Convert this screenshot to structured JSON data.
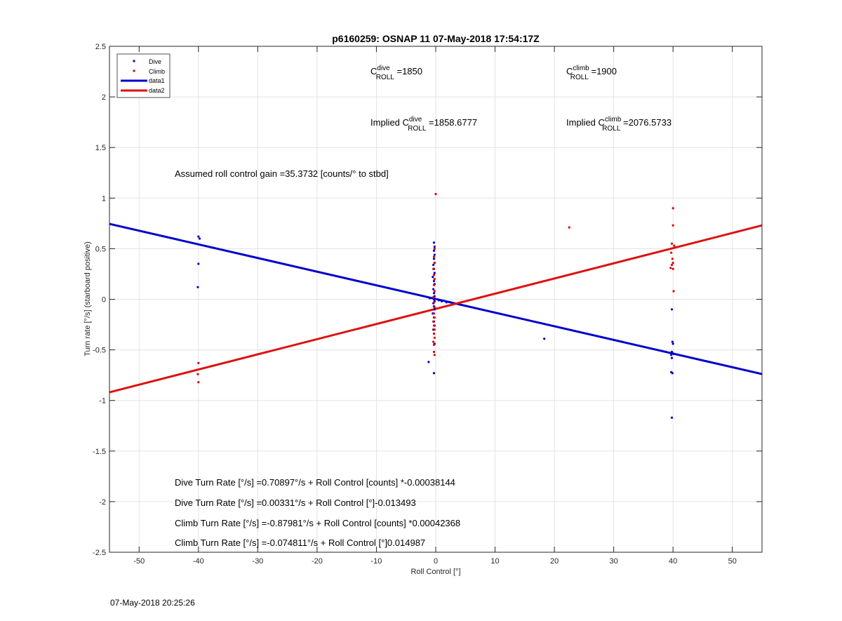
{
  "chart_data": {
    "type": "scatter",
    "title": "p6160259: OSNAP 11 07-May-2018 17:54:17Z",
    "xlabel": "Roll Control [°]",
    "ylabel": "Turn rate [°/s] (starboard positive)",
    "xlim": [
      -55,
      55
    ],
    "ylim": [
      -2.5,
      2.5
    ],
    "x_ticks": [
      -50,
      -40,
      -30,
      -20,
      -10,
      0,
      10,
      20,
      30,
      40,
      50
    ],
    "y_ticks": [
      -2.5,
      -2,
      -1.5,
      -1,
      -0.5,
      0,
      0.5,
      1,
      1.5,
      2,
      2.5
    ],
    "grid": true,
    "legend_position": "top-left",
    "colors": {
      "dive": "#0000cc",
      "climb": "#dd0000",
      "data1": "#0000cc",
      "data2": "#dd1111"
    },
    "series": [
      {
        "name": "Dive",
        "kind": "points",
        "x": [
          -40,
          -39.8,
          -40,
          -40.1,
          -0.3,
          -0.2,
          -0.3,
          -0.2,
          -0.3,
          -0.2,
          -0.4,
          -0.3,
          -0.2,
          -0.5,
          -0.3,
          -0.2,
          -0.4,
          -0.3,
          -0.2,
          -0.3,
          -0.3,
          -0.2,
          -0.4,
          -0.3,
          -0.2,
          -0.5,
          -0.3,
          -0.3,
          -0.2,
          -0.4,
          -0.3,
          -0.2,
          0.5,
          1.0,
          1.8,
          2.5,
          -1.0,
          -1.2,
          -0.3,
          18.3,
          39.8,
          39.9,
          40,
          39.8,
          39.7,
          39.9,
          40.1,
          39.8,
          39.7,
          39.9,
          39.8
        ],
        "y": [
          0.62,
          0.6,
          0.35,
          0.12,
          0.56,
          0.52,
          0.48,
          0.44,
          0.4,
          0.36,
          0.34,
          0.3,
          0.26,
          0.22,
          0.18,
          0.15,
          0.1,
          0.06,
          0.03,
          0.01,
          0.0,
          -0.02,
          -0.04,
          -0.07,
          -0.1,
          -0.14,
          -0.18,
          -0.22,
          -0.26,
          -0.3,
          -0.34,
          -0.44,
          -0.01,
          -0.02,
          -0.03,
          -0.03,
          0.01,
          -0.62,
          -0.73,
          -0.39,
          -0.1,
          -0.42,
          -0.44,
          -0.52,
          -0.55,
          -0.53,
          -0.54,
          -0.58,
          -0.72,
          -0.73,
          -1.17
        ]
      },
      {
        "name": "Climb",
        "kind": "points",
        "x": [
          -40,
          -40.1,
          -40,
          0,
          -0.2,
          -0.3,
          -0.2,
          -0.4,
          -0.3,
          -0.2,
          -0.3,
          -0.2,
          -0.4,
          -0.3,
          -0.2,
          -0.3,
          -0.2,
          -0.4,
          -0.3,
          -0.2,
          -0.3,
          -0.2,
          -0.4,
          -0.3,
          -0.2,
          -0.3,
          22.5,
          40,
          40,
          39.8,
          40.2,
          39.7,
          39.9,
          40,
          39.8,
          40,
          39.6,
          40.1
        ],
        "y": [
          -0.63,
          -0.74,
          -0.82,
          1.04,
          0.5,
          0.42,
          0.36,
          0.3,
          0.24,
          0.2,
          0.14,
          0.08,
          0.02,
          -0.03,
          -0.08,
          -0.14,
          -0.18,
          -0.22,
          -0.26,
          -0.3,
          -0.34,
          -0.38,
          -0.42,
          -0.52,
          -0.55,
          -0.45,
          0.71,
          0.9,
          0.73,
          0.55,
          0.53,
          0.46,
          0.4,
          0.36,
          0.34,
          0.3,
          0.31,
          0.08
        ]
      },
      {
        "name": "data1",
        "kind": "line",
        "x": [
          -55,
          55
        ],
        "y": [
          0.745,
          -0.739
        ]
      },
      {
        "name": "data2",
        "kind": "line",
        "x": [
          -55,
          55
        ],
        "y": [
          -0.919,
          0.73
        ]
      }
    ],
    "legend": [
      "Dive",
      "Climb",
      "data1",
      "data2"
    ],
    "annotations": {
      "c_roll_dive": {
        "prefix": "C",
        "sup": "dive",
        "sub": "ROLL",
        "value": " =1850"
      },
      "c_roll_climb": {
        "prefix": "C",
        "sup": "climb",
        "sub": "ROLL",
        "value": " =1900"
      },
      "implied_dive": {
        "prefix": "Implied C",
        "sup": "dive",
        "sub": "ROLL",
        "value": " =1858.6777"
      },
      "implied_climb": {
        "prefix": "Implied C",
        "sup": "climb",
        "sub": "ROLL",
        "value": " =2076.5733"
      },
      "gain": "Assumed roll control gain =35.3732 [counts/° to stbd]",
      "eq1": "Dive Turn Rate [°/s] =0.70897°/s + Roll Control [counts] *-0.00038144",
      "eq2": "Dive Turn Rate [°/s] =0.00331°/s + Roll Control [°]-0.013493",
      "eq3": "Climb Turn Rate [°/s] =-0.87981°/s + Roll Control [counts] *0.00042368",
      "eq4": "Climb Turn Rate [°/s] =-0.074811°/s + Roll Control [°]0.014987"
    }
  },
  "footer": {
    "timestamp": "07-May-2018 20:25:26"
  }
}
